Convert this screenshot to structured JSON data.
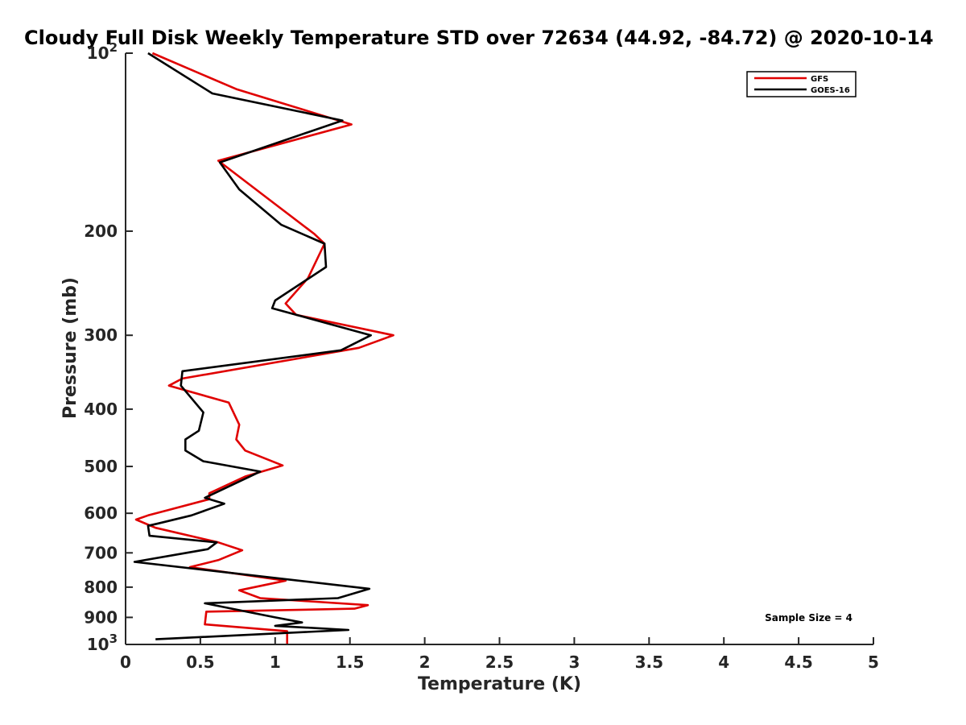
{
  "chart_data": {
    "type": "line",
    "title": "Cloudy Full Disk Weekly Temperature STD over 72634 (44.92, -84.72) @ 2020-10-14",
    "xlabel": "Temperature (K)",
    "ylabel": "Pressure (mb)",
    "xlim": [
      0,
      5
    ],
    "ylim": [
      100,
      1000
    ],
    "yscale": "log",
    "y_reversed": true,
    "x_ticks": [
      "0",
      "0.5",
      "1",
      "1.5",
      "2",
      "2.5",
      "3",
      "3.5",
      "4",
      "4.5",
      "5"
    ],
    "y_ticks": [
      {
        "value": 100,
        "base": "10",
        "exp": "2"
      },
      {
        "value": 200,
        "label": "200"
      },
      {
        "value": 300,
        "label": "300"
      },
      {
        "value": 400,
        "label": "400"
      },
      {
        "value": 500,
        "label": "500"
      },
      {
        "value": 600,
        "label": "600"
      },
      {
        "value": 700,
        "label": "700"
      },
      {
        "value": 800,
        "label": "800"
      },
      {
        "value": 900,
        "label": "900"
      },
      {
        "value": 1000,
        "base": "10",
        "exp": "3"
      }
    ],
    "grid": false,
    "legend_position": "top-right",
    "annotation": "Sample Size = 4",
    "series": [
      {
        "name": "GFS",
        "color": "#e00000",
        "points": [
          [
            0.18,
            100
          ],
          [
            0.74,
            115
          ],
          [
            1.51,
            132
          ],
          [
            0.62,
            152
          ],
          [
            1.0,
            180
          ],
          [
            1.26,
            202
          ],
          [
            1.33,
            210
          ],
          [
            1.22,
            240
          ],
          [
            1.07,
            265
          ],
          [
            1.14,
            277
          ],
          [
            1.79,
            300
          ],
          [
            1.56,
            315
          ],
          [
            0.38,
            355
          ],
          [
            0.29,
            365
          ],
          [
            0.69,
            390
          ],
          [
            0.76,
            425
          ],
          [
            0.74,
            450
          ],
          [
            0.8,
            470
          ],
          [
            1.05,
            498
          ],
          [
            0.8,
            520
          ],
          [
            0.56,
            555
          ],
          [
            0.56,
            568
          ],
          [
            0.15,
            605
          ],
          [
            0.07,
            615
          ],
          [
            0.2,
            635
          ],
          [
            0.62,
            672
          ],
          [
            0.78,
            693
          ],
          [
            0.62,
            720
          ],
          [
            0.43,
            740
          ],
          [
            1.07,
            780
          ],
          [
            0.76,
            810
          ],
          [
            0.9,
            835
          ],
          [
            1.62,
            858
          ],
          [
            1.53,
            870
          ],
          [
            0.54,
            880
          ],
          [
            0.53,
            925
          ],
          [
            1.08,
            950
          ],
          [
            1.08,
            1000
          ]
        ]
      },
      {
        "name": "GOES-16",
        "color": "#000000",
        "points": [
          [
            0.15,
            100
          ],
          [
            0.58,
            117
          ],
          [
            1.45,
            130
          ],
          [
            0.63,
            153
          ],
          [
            0.76,
            170
          ],
          [
            1.04,
            195
          ],
          [
            1.33,
            210
          ],
          [
            1.34,
            230
          ],
          [
            1.0,
            262
          ],
          [
            0.98,
            270
          ],
          [
            1.64,
            300
          ],
          [
            1.44,
            318
          ],
          [
            0.38,
            345
          ],
          [
            0.37,
            365
          ],
          [
            0.52,
            405
          ],
          [
            0.49,
            435
          ],
          [
            0.4,
            450
          ],
          [
            0.4,
            470
          ],
          [
            0.52,
            490
          ],
          [
            0.9,
            510
          ],
          [
            0.53,
            565
          ],
          [
            0.66,
            578
          ],
          [
            0.44,
            605
          ],
          [
            0.21,
            625
          ],
          [
            0.15,
            630
          ],
          [
            0.16,
            655
          ],
          [
            0.61,
            672
          ],
          [
            0.55,
            690
          ],
          [
            0.06,
            725
          ],
          [
            1.63,
            805
          ],
          [
            1.42,
            835
          ],
          [
            0.53,
            852
          ],
          [
            1.0,
            900
          ],
          [
            1.18,
            918
          ],
          [
            1.0,
            930
          ],
          [
            1.49,
            945
          ],
          [
            0.2,
            980
          ]
        ]
      }
    ]
  }
}
